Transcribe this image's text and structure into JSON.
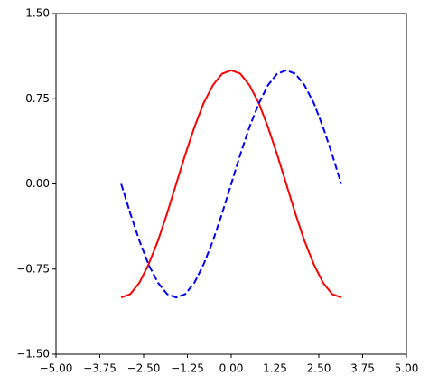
{
  "chart_data": {
    "type": "line",
    "x": [
      -3.14,
      -2.88,
      -2.62,
      -2.36,
      -2.09,
      -1.83,
      -1.57,
      -1.31,
      -1.05,
      -0.79,
      -0.52,
      -0.26,
      0,
      0.26,
      0.52,
      0.79,
      1.05,
      1.31,
      1.57,
      1.83,
      2.09,
      2.36,
      2.62,
      2.88,
      3.14
    ],
    "series": [
      {
        "color": "#ff0000",
        "linestyle": "solid",
        "values": [
          -1,
          -0.97,
          -0.87,
          -0.71,
          -0.5,
          -0.26,
          0,
          0.26,
          0.5,
          0.71,
          0.87,
          0.97,
          1,
          0.97,
          0.87,
          0.71,
          0.5,
          0.26,
          0,
          -0.26,
          -0.5,
          -0.71,
          -0.87,
          -0.97,
          -1
        ]
      },
      {
        "color": "#0000ff",
        "linestyle": "dashed",
        "values": [
          0,
          -0.26,
          -0.5,
          -0.71,
          -0.87,
          -0.97,
          -1,
          -0.97,
          -0.87,
          -0.71,
          -0.5,
          -0.26,
          0,
          0.26,
          0.5,
          0.71,
          0.87,
          0.97,
          1,
          0.97,
          0.87,
          0.71,
          0.5,
          0.26,
          0
        ]
      }
    ],
    "xlim": [
      -5,
      5
    ],
    "xticks": [
      {
        "value": -5,
        "label": "−5.00"
      },
      {
        "value": -3.75,
        "label": "−3.75"
      },
      {
        "value": -2.5,
        "label": "−2.50"
      },
      {
        "value": -1.25,
        "label": "−1.25"
      },
      {
        "value": 0,
        "label": "0.00"
      },
      {
        "value": 1.25,
        "label": "1.25"
      },
      {
        "value": 2.5,
        "label": "2.50"
      },
      {
        "value": 3.75,
        "label": "3.75"
      },
      {
        "value": 5,
        "label": "5.00"
      }
    ],
    "ylim": [
      -1.5,
      1.5
    ],
    "yticks": [
      {
        "value": -1.5,
        "label": "−1.50"
      },
      {
        "value": -0.75,
        "label": "−0.75"
      },
      {
        "value": 0,
        "label": "0.00"
      },
      {
        "value": 0.75,
        "label": "0.75"
      },
      {
        "value": 1.5,
        "label": "1.50"
      }
    ],
    "grid": false
  }
}
